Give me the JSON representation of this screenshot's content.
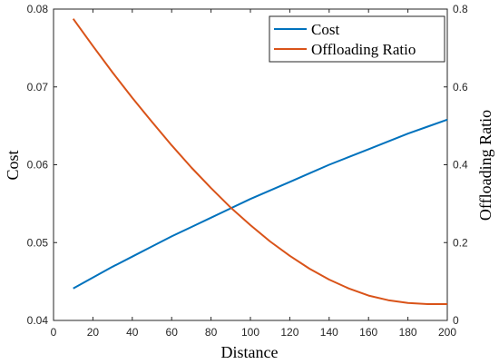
{
  "chart_data": {
    "type": "line",
    "xlabel": "Distance",
    "xlim": [
      0,
      200
    ],
    "x_ticks": [
      0,
      20,
      40,
      60,
      80,
      100,
      120,
      140,
      160,
      180,
      200
    ],
    "y_left": {
      "label": "Cost",
      "lim": [
        0.04,
        0.08
      ],
      "ticks": [
        "0.04",
        "0.05",
        "0.06",
        "0.07",
        "0.08"
      ]
    },
    "y_right": {
      "label": "Offloading Ratio",
      "lim": [
        0,
        0.8
      ],
      "ticks": [
        "0",
        "0.2",
        "0.4",
        "0.6",
        "0.8"
      ]
    },
    "legend_position": "top-right",
    "grid": false,
    "series": [
      {
        "name": "Cost",
        "axis": "left",
        "color": "#0072BD",
        "x": [
          10,
          20,
          30,
          40,
          50,
          60,
          70,
          80,
          90,
          100,
          110,
          120,
          130,
          140,
          150,
          160,
          170,
          180,
          190,
          200
        ],
        "y": [
          0.0441,
          0.0455,
          0.0469,
          0.0482,
          0.0495,
          0.0508,
          0.052,
          0.0532,
          0.0544,
          0.0556,
          0.0567,
          0.0578,
          0.0589,
          0.06,
          0.061,
          0.062,
          0.063,
          0.064,
          0.0649,
          0.0658
        ]
      },
      {
        "name": "Offloading Ratio",
        "axis": "right",
        "color": "#D95319",
        "x": [
          10,
          20,
          30,
          40,
          50,
          60,
          70,
          80,
          90,
          100,
          110,
          120,
          130,
          140,
          150,
          160,
          170,
          180,
          190,
          200
        ],
        "y": [
          0.775,
          0.705,
          0.637,
          0.572,
          0.51,
          0.45,
          0.393,
          0.34,
          0.29,
          0.245,
          0.203,
          0.166,
          0.133,
          0.105,
          0.082,
          0.064,
          0.052,
          0.045,
          0.042,
          0.042
        ]
      }
    ]
  }
}
